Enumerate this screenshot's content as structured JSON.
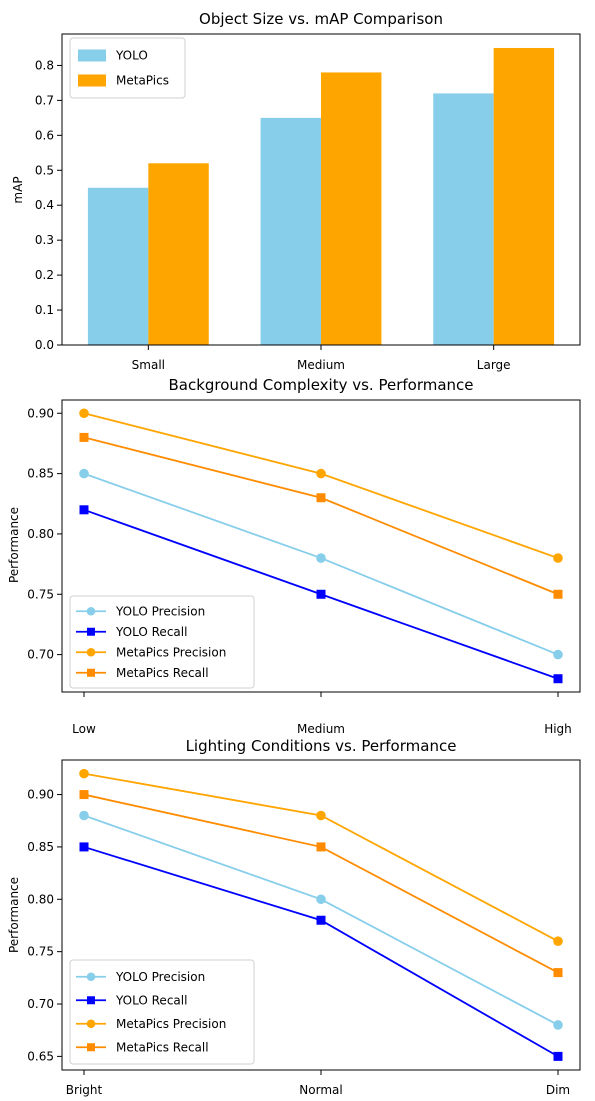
{
  "colors": {
    "yolo_light": "#87CEEB",
    "metapics": "#FFA500",
    "yolo_recall": "#0000FF",
    "metapics_recall": "#FF8C00"
  },
  "chart_data": [
    {
      "type": "bar",
      "title": "Object Size vs. mAP Comparison",
      "xlabel": "",
      "ylabel": "mAP",
      "categories": [
        "Small",
        "Medium",
        "Large"
      ],
      "series": [
        {
          "name": "YOLO",
          "values": [
            0.45,
            0.65,
            0.72
          ],
          "color": "#87CEEB"
        },
        {
          "name": "MetaPics",
          "values": [
            0.52,
            0.78,
            0.85
          ],
          "color": "#FFA500"
        }
      ],
      "ylim": [
        0,
        0.89
      ],
      "yticks": [
        "0.0",
        "0.1",
        "0.2",
        "0.3",
        "0.4",
        "0.5",
        "0.6",
        "0.7",
        "0.8"
      ],
      "legend": "top-left",
      "grid": false
    },
    {
      "type": "line",
      "title": "Background Complexity vs. Performance",
      "xlabel": "",
      "ylabel": "Performance",
      "categories": [
        "Low",
        "Medium",
        "High"
      ],
      "series": [
        {
          "name": "YOLO Precision",
          "values": [
            0.85,
            0.78,
            0.7
          ],
          "color": "#87CEEB",
          "marker": "circle"
        },
        {
          "name": "YOLO Recall",
          "values": [
            0.82,
            0.75,
            0.68
          ],
          "color": "#0000FF",
          "marker": "square"
        },
        {
          "name": "MetaPics Precision",
          "values": [
            0.9,
            0.85,
            0.78
          ],
          "color": "#FFA500",
          "marker": "circle"
        },
        {
          "name": "MetaPics Recall",
          "values": [
            0.88,
            0.83,
            0.75
          ],
          "color": "#FF8C00",
          "marker": "square"
        }
      ],
      "ylim": [
        0.669,
        0.911
      ],
      "yticks": [
        "0.70",
        "0.75",
        "0.80",
        "0.85",
        "0.90"
      ],
      "legend": "bottom-left",
      "grid": false
    },
    {
      "type": "line",
      "title": "Lighting Conditions vs. Performance",
      "xlabel": "",
      "ylabel": "Performance",
      "categories": [
        "Bright",
        "Normal",
        "Dim"
      ],
      "series": [
        {
          "name": "YOLO Precision",
          "values": [
            0.88,
            0.8,
            0.68
          ],
          "color": "#87CEEB",
          "marker": "circle"
        },
        {
          "name": "YOLO Recall",
          "values": [
            0.85,
            0.78,
            0.65
          ],
          "color": "#0000FF",
          "marker": "square"
        },
        {
          "name": "MetaPics Precision",
          "values": [
            0.92,
            0.88,
            0.76
          ],
          "color": "#FFA500",
          "marker": "circle"
        },
        {
          "name": "MetaPics Recall",
          "values": [
            0.9,
            0.85,
            0.73
          ],
          "color": "#FF8C00",
          "marker": "square"
        }
      ],
      "ylim": [
        0.637,
        0.933
      ],
      "yticks": [
        "0.65",
        "0.70",
        "0.75",
        "0.80",
        "0.85",
        "0.90"
      ],
      "legend": "bottom-left",
      "grid": false
    }
  ]
}
